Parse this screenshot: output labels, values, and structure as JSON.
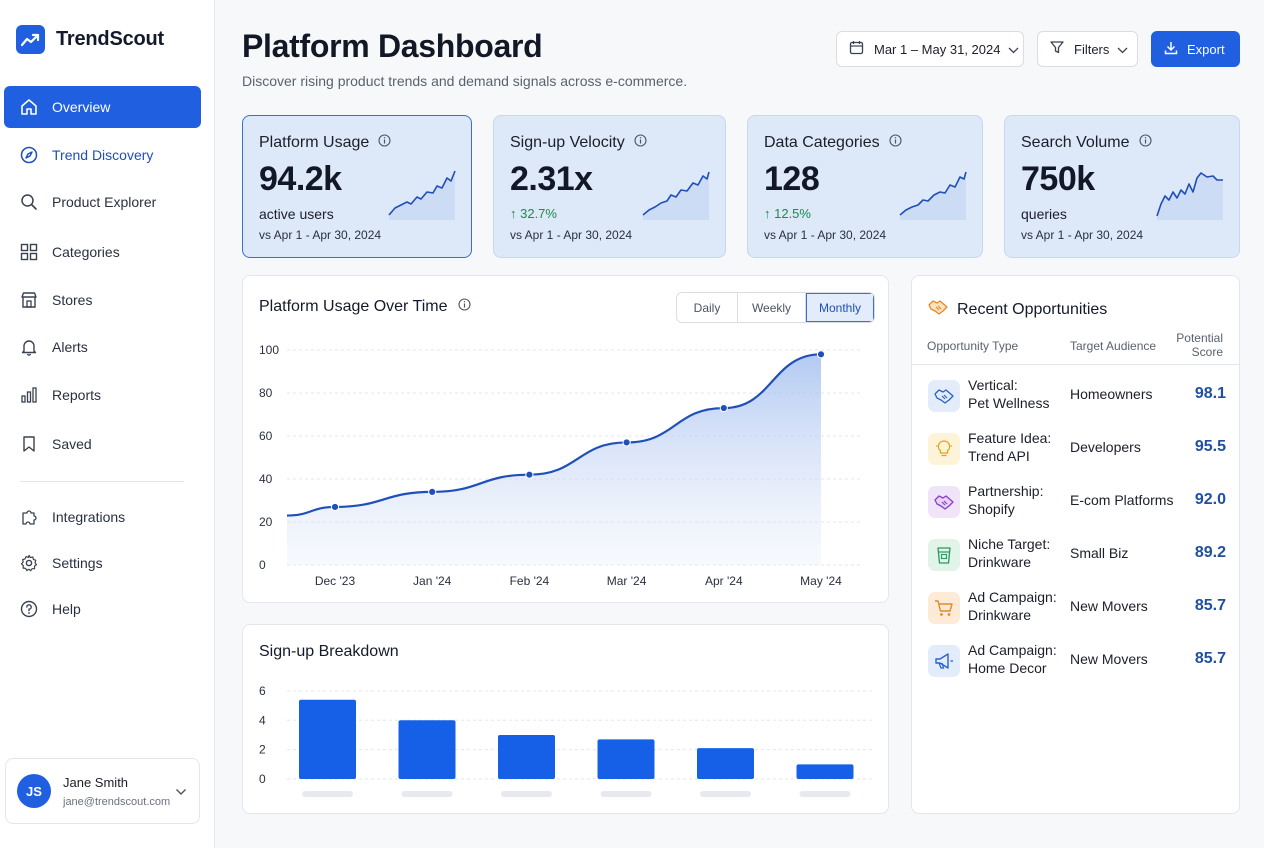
{
  "app": {
    "name": "TrendScout"
  },
  "sidebar": {
    "items": [
      {
        "label": "Overview",
        "icon": "home-icon",
        "active": true
      },
      {
        "label": "Trend Discovery",
        "icon": "compass-icon"
      },
      {
        "label": "Product Explorer",
        "icon": "search-icon"
      },
      {
        "label": "Categories",
        "icon": "grid-icon"
      },
      {
        "label": "Stores",
        "icon": "store-icon"
      },
      {
        "label": "Alerts",
        "icon": "bell-icon"
      },
      {
        "label": "Reports",
        "icon": "bar-chart-icon"
      },
      {
        "label": "Saved",
        "icon": "bookmark-icon"
      }
    ],
    "secondary": [
      {
        "label": "Integrations",
        "icon": "puzzle-icon"
      },
      {
        "label": "Settings",
        "icon": "gear-icon"
      },
      {
        "label": "Help",
        "icon": "help-icon"
      }
    ],
    "user": {
      "initials": "JS",
      "name": "Jane Smith",
      "email": "jane@trendscout.com"
    }
  },
  "header": {
    "title": "Platform Dashboard",
    "subtitle": "Discover rising product trends and demand signals across e-commerce.",
    "date_range": "Mar 1 – May 31, 2024",
    "filters_label": "Filters",
    "export_label": "Export"
  },
  "kpis": [
    {
      "title": "Platform Usage",
      "value": "94.2k",
      "sub": "active users",
      "compare": "vs Apr 1 - Apr 30, 2024"
    },
    {
      "title": "Sign-up Velocity",
      "value": "2.31x",
      "sub": "↑ 32.7%",
      "compare": "vs Apr 1 - Apr 30, 2024"
    },
    {
      "title": "Data Categories",
      "value": "128",
      "sub": "↑ 12.5%",
      "compare": "vs Apr 1 - Apr 30, 2024"
    },
    {
      "title": "Search Volume",
      "value": "750k",
      "sub": "queries",
      "compare": "vs Apr 1 - Apr 30, 2024"
    }
  ],
  "usage_panel": {
    "title": "Platform Usage Over Time",
    "tabs": [
      "Daily",
      "Weekly",
      "Monthly"
    ],
    "active_tab": "Monthly"
  },
  "signup_panel": {
    "title": "Sign-up Breakdown"
  },
  "chart_data": [
    {
      "type": "area",
      "title": "Platform Usage Over Time",
      "x_ticks": [
        "Dec '23",
        "Jan '24",
        "Feb '24",
        "Mar '24",
        "Apr '24",
        "May '24"
      ],
      "y_ticks": [
        0,
        20,
        40,
        60,
        80,
        100
      ],
      "ylim": [
        0,
        100
      ],
      "series": [
        {
          "x": [
            -0.6,
            0,
            1,
            2,
            3,
            4,
            5
          ],
          "y": [
            23,
            27,
            34,
            42,
            57,
            73,
            98
          ],
          "markers": [
            false,
            true,
            true,
            true,
            true,
            true,
            true
          ]
        }
      ],
      "grid": true,
      "color": "#1f4fb8"
    },
    {
      "type": "bar",
      "title": "Sign-up Breakdown",
      "categories": [
        "",
        "",
        "",
        "",
        "",
        ""
      ],
      "values": [
        5.4,
        4.0,
        3.0,
        2.7,
        2.1,
        1.0
      ],
      "y_ticks": [
        0,
        2,
        4,
        6
      ],
      "ylim": [
        0,
        6.4
      ],
      "grid": true,
      "color": "#1560e6"
    }
  ],
  "opportunities": {
    "title": "Recent Opportunities",
    "headers": {
      "type": "Opportunity Type",
      "audience": "Target Audience",
      "score_line1": "Potential",
      "score_line2": "Score"
    },
    "rows": [
      {
        "line1": "Vertical:",
        "line2": "Pet Wellness",
        "audience": "Homeowners",
        "score": "98.1",
        "icon": "handshake-icon",
        "icon_bg": "#e3ecfb",
        "icon_color": "#2a62c9"
      },
      {
        "line1": "Feature Idea:",
        "line2": "Trend API",
        "audience": "Developers",
        "score": "95.5",
        "icon": "lightbulb-icon",
        "icon_bg": "#fdf3d8",
        "icon_color": "#e0a21a"
      },
      {
        "line1": "Partnership:",
        "line2": "Shopify",
        "audience": "E-com Platforms",
        "score": "92.0",
        "icon": "handshake-icon",
        "icon_bg": "#efe4f8",
        "icon_color": "#8a3fc4"
      },
      {
        "line1": "Niche Target:",
        "line2": "Drinkware",
        "audience": "Small Biz",
        "score": "89.2",
        "icon": "cup-icon",
        "icon_bg": "#e2f3ea",
        "icon_color": "#2b9a5c"
      },
      {
        "line1": "Ad Campaign:",
        "line2": "Drinkware",
        "audience": "New Movers",
        "score": "85.7",
        "icon": "cart-icon",
        "icon_bg": "#fdebd8",
        "icon_color": "#e28a2c"
      },
      {
        "line1": "Ad Campaign:",
        "line2": "Home Decor",
        "audience": "New Movers",
        "score": "85.7",
        "icon": "megaphone-icon",
        "icon_bg": "#e3ecfb",
        "icon_color": "#2a62c9"
      }
    ]
  }
}
